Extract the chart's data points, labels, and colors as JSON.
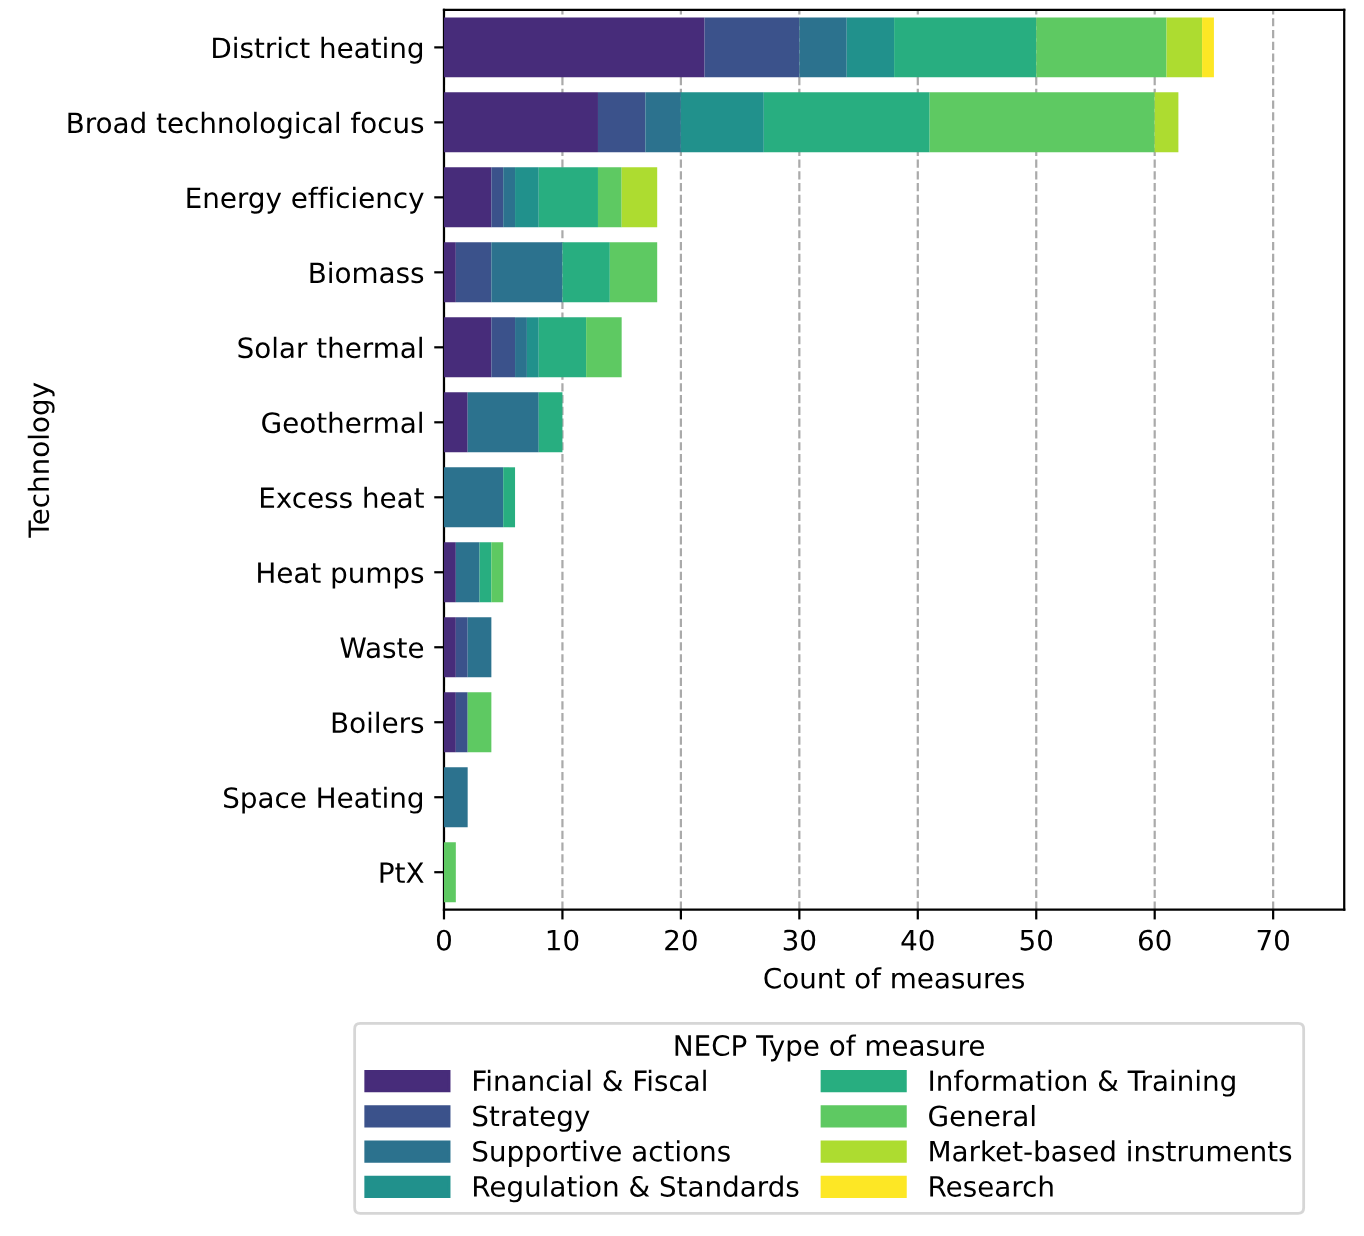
{
  "chart_data": {
    "type": "bar",
    "orientation": "horizontal",
    "stacked": true,
    "xlabel": "Count of measures",
    "ylabel": "Technology",
    "legend_title": "NECP Type of measure",
    "legend": "bottom",
    "grid": "x",
    "xlim": [
      0,
      76
    ],
    "xticks": [
      0,
      10,
      20,
      30,
      40,
      50,
      60,
      70
    ],
    "categories": [
      "District heating",
      "Broad technological focus",
      "Energy efficiency",
      "Biomass",
      "Solar thermal",
      "Geothermal",
      "Excess heat",
      "Heat pumps",
      "Waste",
      "Boilers",
      "Space Heating",
      "PtX"
    ],
    "series": [
      {
        "name": "Financial & Fiscal",
        "color": "#472c7a",
        "values": [
          22,
          13,
          4,
          1,
          4,
          2,
          0,
          1,
          1,
          1,
          0,
          0
        ]
      },
      {
        "name": "Strategy",
        "color": "#3b528b",
        "values": [
          8,
          4,
          1,
          3,
          2,
          0,
          0,
          0,
          1,
          1,
          0,
          0
        ]
      },
      {
        "name": "Supportive actions",
        "color": "#2c728e",
        "values": [
          4,
          3,
          1,
          6,
          1,
          6,
          5,
          2,
          2,
          0,
          2,
          0
        ]
      },
      {
        "name": "Regulation & Standards",
        "color": "#21918c",
        "values": [
          4,
          7,
          2,
          0,
          1,
          0,
          0,
          0,
          0,
          0,
          0,
          0
        ]
      },
      {
        "name": "Information & Training",
        "color": "#28ae80",
        "values": [
          12,
          14,
          5,
          4,
          4,
          2,
          1,
          1,
          0,
          0,
          0,
          0
        ]
      },
      {
        "name": "General",
        "color": "#5ec962",
        "values": [
          11,
          19,
          2,
          4,
          3,
          0,
          0,
          1,
          0,
          2,
          0,
          1
        ]
      },
      {
        "name": "Market-based instruments",
        "color": "#addc30",
        "values": [
          3,
          2,
          3,
          0,
          0,
          0,
          0,
          0,
          0,
          0,
          0,
          0
        ]
      },
      {
        "name": "Research",
        "color": "#fde725",
        "values": [
          1,
          0,
          0,
          0,
          0,
          0,
          0,
          0,
          0,
          0,
          0,
          0
        ]
      }
    ]
  }
}
